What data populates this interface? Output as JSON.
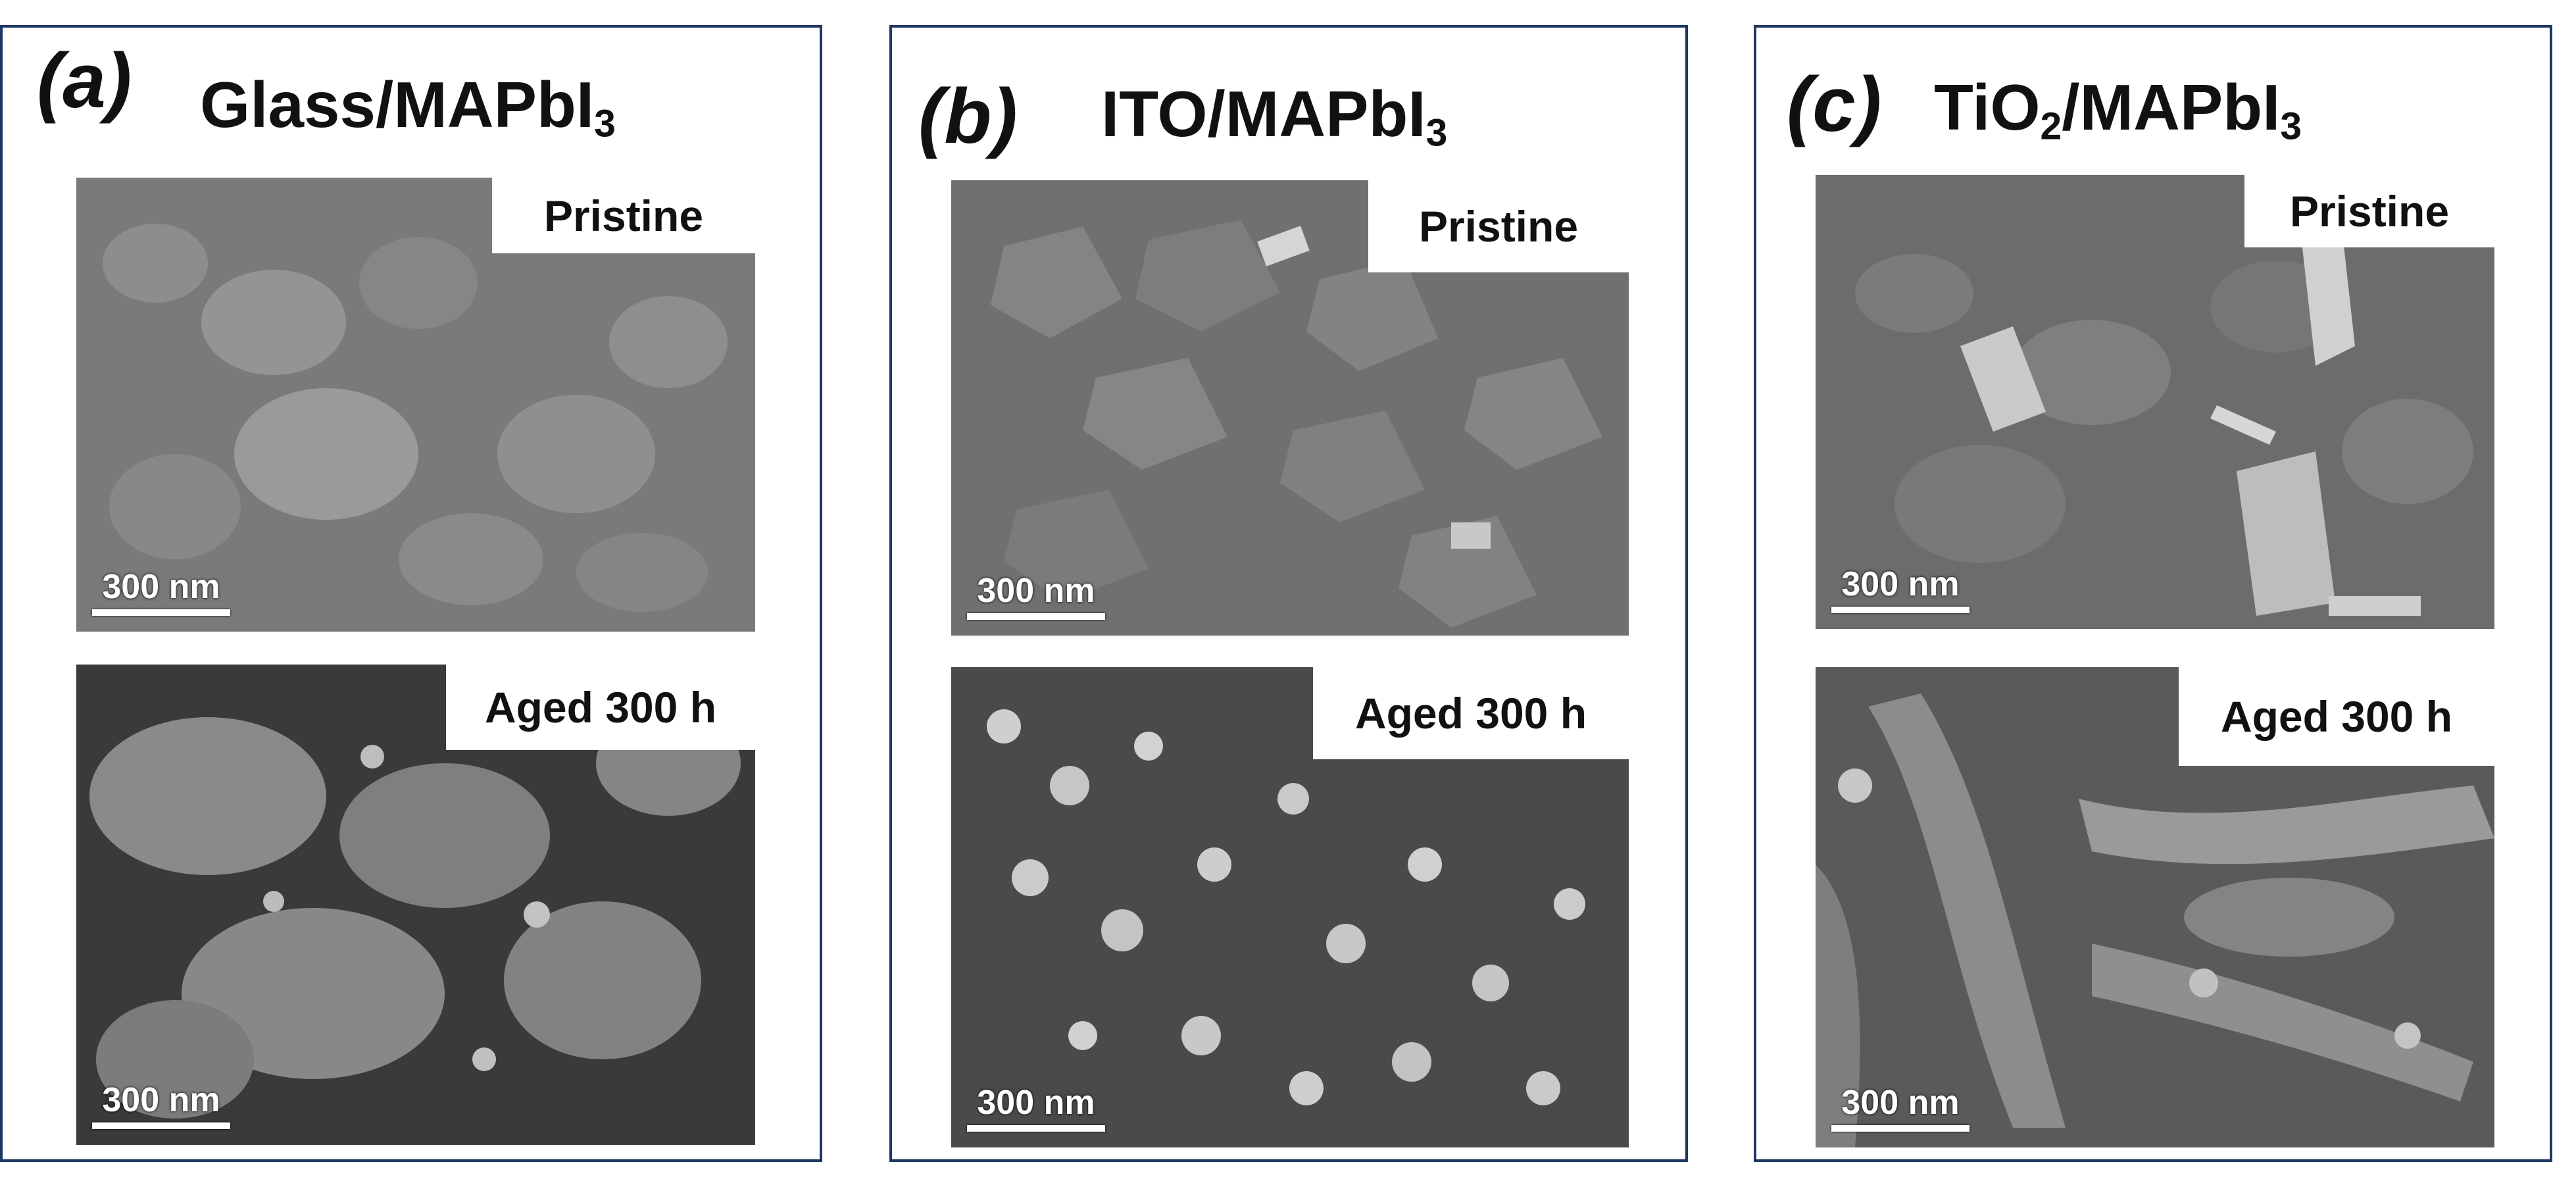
{
  "panels": [
    {
      "letter": "(a)",
      "title_main": "Glass/MAPbI",
      "title_sub": "3",
      "title_tail": "",
      "micrographs": [
        {
          "condition": "Pristine",
          "scale_label": "300 nm"
        },
        {
          "condition": "Aged 300 h",
          "scale_label": "300 nm"
        }
      ]
    },
    {
      "letter": "(b)",
      "title_main": "ITO/MAPbI",
      "title_sub": "3",
      "title_tail": "",
      "micrographs": [
        {
          "condition": "Pristine",
          "scale_label": "300 nm"
        },
        {
          "condition": "Aged 300 h",
          "scale_label": "300 nm"
        }
      ]
    },
    {
      "letter": "(c)",
      "title_main": "TiO",
      "title_sub": "2",
      "title_tail": "/MAPbI",
      "title_sub2": "3",
      "micrographs": [
        {
          "condition": "Pristine",
          "scale_label": "300 nm"
        },
        {
          "condition": "Aged 300 h",
          "scale_label": "300 nm"
        }
      ]
    }
  ],
  "colors": {
    "border": "#1f3864",
    "sem_gray": "#6a6a6a"
  }
}
